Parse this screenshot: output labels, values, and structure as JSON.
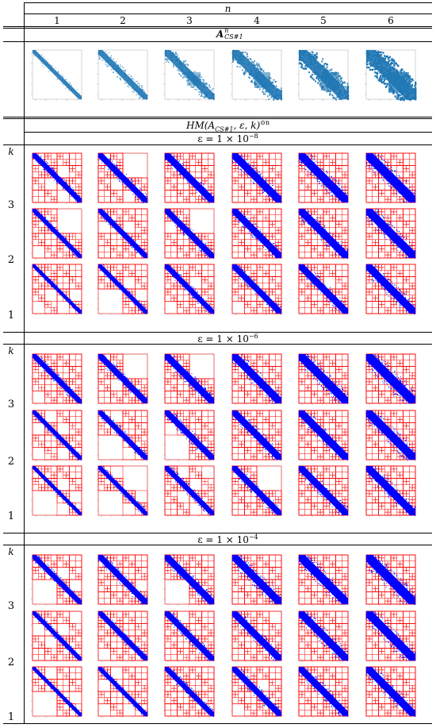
{
  "header": {
    "n_label": "n",
    "columns": [
      "1",
      "2",
      "3",
      "4",
      "5",
      "6"
    ]
  },
  "section_a": {
    "label_base": "A",
    "label_sup": "n",
    "label_sub": "CS#1"
  },
  "section_hm": {
    "label": "HM(A",
    "label_sub": "CS#1",
    "label_rest": ", ε, k)",
    "label_sup": "⊙n"
  },
  "epsilon_blocks": [
    {
      "label_prefix": "ε = 1 × 10",
      "exponent": "−8",
      "k_label": "k",
      "rows": [
        "3",
        "2",
        "1"
      ]
    },
    {
      "label_prefix": "ε = 1 × 10",
      "exponent": "−6",
      "k_label": "k",
      "rows": [
        "3",
        "2",
        "1"
      ]
    },
    {
      "label_prefix": "ε = 1 × 10",
      "exponent": "−4",
      "k_label": "k",
      "rows": [
        "3",
        "2",
        "1"
      ]
    }
  ],
  "colors": {
    "sparsity_blue": "#1f77b4",
    "hm_blue": "#0000ff",
    "hm_red": "#ff0000",
    "rule": "#000000"
  }
}
